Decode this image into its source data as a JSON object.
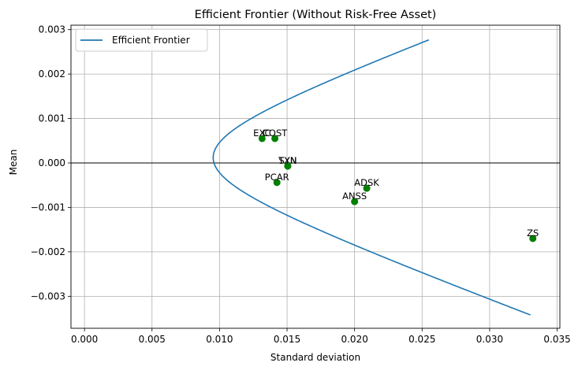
{
  "chart_data": {
    "type": "scatter",
    "title": "Efficient Frontier (Without Risk-Free Asset)",
    "xlabel": "Standard deviation",
    "ylabel": "Mean",
    "xlim": [
      -0.001,
      0.0352
    ],
    "ylim": [
      -0.00372,
      0.0031
    ],
    "xticks": [
      0.0,
      0.005,
      0.01,
      0.015,
      0.02,
      0.025,
      0.03,
      0.035
    ],
    "xtick_labels": [
      "0.000",
      "0.005",
      "0.010",
      "0.015",
      "0.020",
      "0.025",
      "0.030",
      "0.035"
    ],
    "yticks": [
      -0.003,
      -0.002,
      -0.001,
      0.0,
      0.001,
      0.002,
      0.003
    ],
    "ytick_labels": [
      "−0.003",
      "−0.002",
      "−0.001",
      "0.000",
      "0.001",
      "0.002",
      "0.003"
    ],
    "grid": true,
    "legend_position": "top-left",
    "horizontal_line_y": 0.0,
    "frontier": {
      "name": "Efficient Frontier",
      "color": "#1f77b4",
      "min_variance_point": {
        "x": 0.00953,
        "y": 0.000121
      },
      "points": [
        {
          "x": 0.0255,
          "y": 0.00277
        },
        {
          "x": 0.0208,
          "y": 0.00207
        },
        {
          "x": 0.0168,
          "y": 0.00143
        },
        {
          "x": 0.0135,
          "y": 0.00085
        },
        {
          "x": 0.0113,
          "y": 0.00042
        },
        {
          "x": 0.00953,
          "y": 0.000121
        },
        {
          "x": 0.0116,
          "y": -0.00049
        },
        {
          "x": 0.0148,
          "y": -0.0012
        },
        {
          "x": 0.0195,
          "y": -0.00197
        },
        {
          "x": 0.026,
          "y": -0.0026
        },
        {
          "x": 0.0342,
          "y": -0.00342
        }
      ]
    },
    "assets": {
      "color": "#008000",
      "points": [
        {
          "label": "EXC",
          "x": 0.01315,
          "y": 0.00055
        },
        {
          "label": "COST",
          "x": 0.0141,
          "y": 0.00055
        },
        {
          "label": "TXN",
          "x": 0.01505,
          "y": -7e-05
        },
        {
          "label": "SYN",
          "x": 0.01505,
          "y": -7e-05
        },
        {
          "label": "PCAR",
          "x": 0.01425,
          "y": -0.00044
        },
        {
          "label": "ADSK",
          "x": 0.0209,
          "y": -0.00057
        },
        {
          "label": "ANSS",
          "x": 0.02,
          "y": -0.00087
        },
        {
          "label": "ZS",
          "x": 0.0332,
          "y": -0.0017
        }
      ]
    }
  }
}
